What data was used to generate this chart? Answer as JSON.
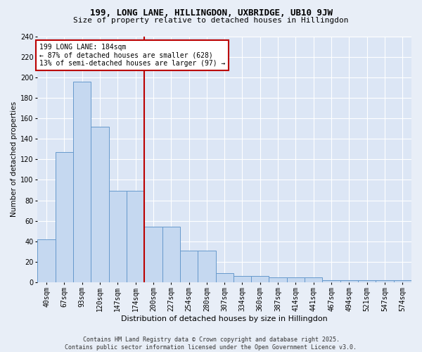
{
  "title1": "199, LONG LANE, HILLINGDON, UXBRIDGE, UB10 9JW",
  "title2": "Size of property relative to detached houses in Hillingdon",
  "xlabel": "Distribution of detached houses by size in Hillingdon",
  "ylabel": "Number of detached properties",
  "categories": [
    "40sqm",
    "67sqm",
    "93sqm",
    "120sqm",
    "147sqm",
    "174sqm",
    "200sqm",
    "227sqm",
    "254sqm",
    "280sqm",
    "307sqm",
    "334sqm",
    "360sqm",
    "387sqm",
    "414sqm",
    "441sqm",
    "467sqm",
    "494sqm",
    "521sqm",
    "547sqm",
    "574sqm"
  ],
  "values": [
    42,
    127,
    196,
    152,
    89,
    89,
    54,
    54,
    31,
    31,
    9,
    6,
    6,
    5,
    5,
    5,
    2,
    2,
    2,
    2,
    2
  ],
  "bar_color": "#c5d8f0",
  "bar_edge_color": "#6699cc",
  "vline_x": 5.5,
  "vline_color": "#bb0000",
  "annotation_text": "199 LONG LANE: 184sqm\n← 87% of detached houses are smaller (628)\n13% of semi-detached houses are larger (97) →",
  "annotation_box_color": "#ffffff",
  "annotation_box_edge": "#bb0000",
  "footer": "Contains HM Land Registry data © Crown copyright and database right 2025.\nContains public sector information licensed under the Open Government Licence v3.0.",
  "ylim": [
    0,
    240
  ],
  "yticks": [
    0,
    20,
    40,
    60,
    80,
    100,
    120,
    140,
    160,
    180,
    200,
    220,
    240
  ],
  "background_color": "#e8eef7",
  "plot_bg_color": "#dce6f5",
  "title1_fontsize": 9,
  "title2_fontsize": 8,
  "ylabel_fontsize": 7.5,
  "xlabel_fontsize": 8,
  "tick_fontsize": 7,
  "ann_fontsize": 7
}
